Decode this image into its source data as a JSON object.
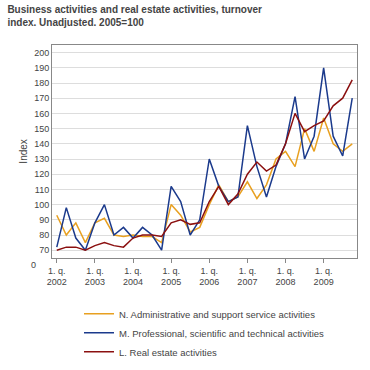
{
  "chart_data": {
    "type": "line",
    "title": "Business activities and real estate activities, turnover\nindex. Unadjusted. 2005=100",
    "y_label": "Index",
    "categories": [
      "1. q.\n2002",
      null,
      null,
      null,
      "1. q.\n2003",
      null,
      null,
      null,
      "1. q.\n2004",
      null,
      null,
      null,
      "1. q.\n2005",
      null,
      null,
      null,
      "1. q.\n2006",
      null,
      null,
      null,
      "1. q.\n2007",
      null,
      null,
      null,
      "1. q.\n2008",
      null,
      null,
      null,
      "1. q.\n2009",
      null,
      null,
      null
    ],
    "series": [
      {
        "name": "N. Administrative and support service activities",
        "color": "#E8A020",
        "values": [
          93,
          80,
          88,
          75,
          88,
          91,
          80,
          79,
          80,
          79,
          79,
          75,
          100,
          93,
          82,
          85,
          100,
          113,
          102,
          105,
          115,
          104,
          113,
          130,
          135,
          125,
          150,
          135,
          157,
          140,
          135,
          140
        ]
      },
      {
        "name": "M. Professional, scientific and technical activities",
        "color": "#1B3A8C",
        "values": [
          72,
          98,
          78,
          70,
          88,
          100,
          80,
          85,
          78,
          85,
          80,
          70,
          112,
          102,
          80,
          90,
          130,
          112,
          102,
          105,
          152,
          125,
          105,
          125,
          140,
          171,
          130,
          145,
          190,
          145,
          132,
          170
        ]
      },
      {
        "name": "L. Real estate activities",
        "color": "#8B1010",
        "values": [
          70,
          72,
          72,
          70,
          73,
          75,
          73,
          72,
          78,
          80,
          80,
          79,
          88,
          90,
          87,
          88,
          102,
          112,
          100,
          107,
          120,
          128,
          122,
          126,
          140,
          160,
          148,
          152,
          155,
          165,
          170,
          182
        ]
      }
    ],
    "ylim": [
      65,
      205
    ],
    "yticks": [
      70,
      80,
      90,
      100,
      110,
      120,
      130,
      140,
      150,
      160,
      170,
      180,
      190,
      200
    ],
    "grid": true,
    "legend": "bottom",
    "annotations": [
      {
        "text": "0",
        "y": 65
      }
    ]
  }
}
